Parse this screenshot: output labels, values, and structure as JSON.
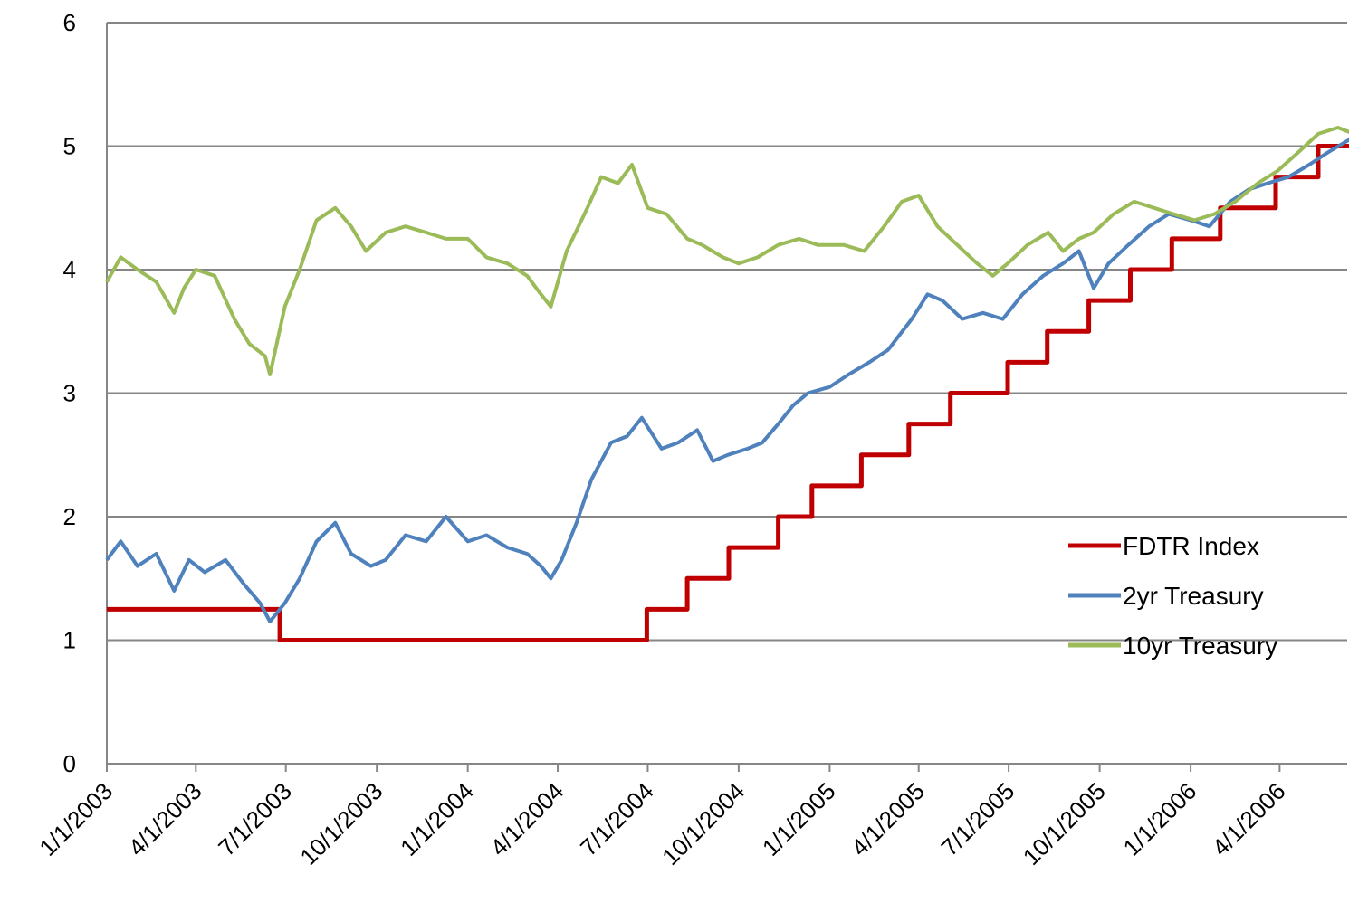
{
  "chart_data": {
    "type": "line",
    "title": "",
    "xlabel": "",
    "ylabel": "",
    "ylim": [
      0,
      6
    ],
    "yticks": [
      0,
      1,
      2,
      3,
      4,
      5,
      6
    ],
    "xlim": [
      "2003-01-01",
      "2006-07-01"
    ],
    "xticks": [
      "2003-01-01",
      "2003-04-01",
      "2003-07-01",
      "2003-10-01",
      "2004-01-01",
      "2004-04-01",
      "2004-07-01",
      "2004-10-01",
      "2005-01-01",
      "2005-04-01",
      "2005-07-01",
      "2005-10-01",
      "2006-01-01",
      "2006-04-01"
    ],
    "xtick_labels": [
      "1/1/2003",
      "4/1/2003",
      "7/1/2003",
      "10/1/2003",
      "1/1/2004",
      "4/1/2004",
      "7/1/2004",
      "10/1/2004",
      "1/1/2005",
      "4/1/2005",
      "7/1/2005",
      "10/1/2005",
      "1/1/2006",
      "4/1/2006"
    ],
    "grid": true,
    "legend_position": "right",
    "series": [
      {
        "name": "FDTR Index",
        "color": "#c00000",
        "step": true,
        "x": [
          "2003-01-01",
          "2003-06-25",
          "2004-06-30",
          "2004-08-10",
          "2004-09-21",
          "2004-11-10",
          "2004-12-14",
          "2005-02-02",
          "2005-03-22",
          "2005-05-03",
          "2005-06-30",
          "2005-08-09",
          "2005-09-20",
          "2005-11-01",
          "2005-12-13",
          "2006-01-31",
          "2006-03-28",
          "2006-05-10",
          "2006-06-29",
          "2006-07-01"
        ],
        "values": [
          1.25,
          1.0,
          1.25,
          1.5,
          1.75,
          2.0,
          2.25,
          2.5,
          2.75,
          3.0,
          3.25,
          3.5,
          3.75,
          4.0,
          4.25,
          4.5,
          4.75,
          5.0,
          5.25,
          5.25
        ]
      },
      {
        "name": "2yr Treasury",
        "color": "#4f81bd",
        "x": [
          "2003-01-01",
          "2003-01-15",
          "2003-02-01",
          "2003-02-20",
          "2003-03-10",
          "2003-03-25",
          "2003-04-10",
          "2003-05-01",
          "2003-05-20",
          "2003-06-05",
          "2003-06-15",
          "2003-06-30",
          "2003-07-15",
          "2003-08-01",
          "2003-08-20",
          "2003-09-05",
          "2003-09-25",
          "2003-10-10",
          "2003-10-30",
          "2003-11-20",
          "2003-12-10",
          "2004-01-01",
          "2004-01-20",
          "2004-02-10",
          "2004-03-01",
          "2004-03-15",
          "2004-03-25",
          "2004-04-05",
          "2004-04-20",
          "2004-05-05",
          "2004-05-25",
          "2004-06-10",
          "2004-06-25",
          "2004-07-15",
          "2004-08-01",
          "2004-08-20",
          "2004-09-05",
          "2004-09-20",
          "2004-10-10",
          "2004-10-25",
          "2004-11-10",
          "2004-11-25",
          "2004-12-10",
          "2005-01-01",
          "2005-01-20",
          "2005-02-10",
          "2005-03-01",
          "2005-03-25",
          "2005-04-10",
          "2005-04-25",
          "2005-05-15",
          "2005-06-05",
          "2005-06-25",
          "2005-07-15",
          "2005-08-05",
          "2005-08-25",
          "2005-09-10",
          "2005-09-25",
          "2005-10-10",
          "2005-10-30",
          "2005-11-20",
          "2005-12-10",
          "2006-01-01",
          "2006-01-20",
          "2006-02-10",
          "2006-03-01",
          "2006-03-20",
          "2006-04-10",
          "2006-05-01",
          "2006-05-20",
          "2006-06-10",
          "2006-06-30"
        ],
        "values": [
          1.65,
          1.8,
          1.6,
          1.7,
          1.4,
          1.65,
          1.55,
          1.65,
          1.45,
          1.3,
          1.15,
          1.3,
          1.5,
          1.8,
          1.95,
          1.7,
          1.6,
          1.65,
          1.85,
          1.8,
          2.0,
          1.8,
          1.85,
          1.75,
          1.7,
          1.6,
          1.5,
          1.65,
          1.95,
          2.3,
          2.6,
          2.65,
          2.8,
          2.55,
          2.6,
          2.7,
          2.45,
          2.5,
          2.55,
          2.6,
          2.75,
          2.9,
          3.0,
          3.05,
          3.15,
          3.25,
          3.35,
          3.6,
          3.8,
          3.75,
          3.6,
          3.65,
          3.6,
          3.8,
          3.95,
          4.05,
          4.15,
          3.85,
          4.05,
          4.2,
          4.35,
          4.45,
          4.4,
          4.35,
          4.55,
          4.65,
          4.7,
          4.75,
          4.85,
          4.95,
          5.05,
          5.25
        ]
      },
      {
        "name": "10yr Treasury",
        "color": "#9bbb59",
        "x": [
          "2003-01-01",
          "2003-01-15",
          "2003-02-01",
          "2003-02-20",
          "2003-03-10",
          "2003-03-20",
          "2003-04-01",
          "2003-04-20",
          "2003-05-10",
          "2003-05-25",
          "2003-06-10",
          "2003-06-15",
          "2003-06-30",
          "2003-07-15",
          "2003-08-01",
          "2003-08-20",
          "2003-09-05",
          "2003-09-20",
          "2003-10-10",
          "2003-10-30",
          "2003-11-20",
          "2003-12-10",
          "2004-01-01",
          "2004-01-20",
          "2004-02-10",
          "2004-03-01",
          "2004-03-15",
          "2004-03-25",
          "2004-04-10",
          "2004-05-01",
          "2004-05-15",
          "2004-06-01",
          "2004-06-15",
          "2004-07-01",
          "2004-07-20",
          "2004-08-10",
          "2004-08-25",
          "2004-09-15",
          "2004-10-01",
          "2004-10-20",
          "2004-11-10",
          "2004-12-01",
          "2004-12-20",
          "2005-01-15",
          "2005-02-05",
          "2005-02-25",
          "2005-03-15",
          "2005-04-01",
          "2005-04-20",
          "2005-05-10",
          "2005-05-30",
          "2005-06-15",
          "2005-06-30",
          "2005-07-20",
          "2005-08-10",
          "2005-08-25",
          "2005-09-10",
          "2005-09-25",
          "2005-10-15",
          "2005-11-05",
          "2005-11-25",
          "2005-12-15",
          "2006-01-05",
          "2006-01-25",
          "2006-02-15",
          "2006-03-10",
          "2006-03-30",
          "2006-04-20",
          "2006-05-10",
          "2006-05-30",
          "2006-06-15",
          "2006-06-30"
        ],
        "values": [
          3.9,
          4.1,
          4.0,
          3.9,
          3.65,
          3.85,
          4.0,
          3.95,
          3.6,
          3.4,
          3.3,
          3.15,
          3.7,
          4.0,
          4.4,
          4.5,
          4.35,
          4.15,
          4.3,
          4.35,
          4.3,
          4.25,
          4.25,
          4.1,
          4.05,
          3.95,
          3.8,
          3.7,
          4.15,
          4.5,
          4.75,
          4.7,
          4.85,
          4.5,
          4.45,
          4.25,
          4.2,
          4.1,
          4.05,
          4.1,
          4.2,
          4.25,
          4.2,
          4.2,
          4.15,
          4.35,
          4.55,
          4.6,
          4.35,
          4.2,
          4.05,
          3.95,
          4.05,
          4.2,
          4.3,
          4.15,
          4.25,
          4.3,
          4.45,
          4.55,
          4.5,
          4.45,
          4.4,
          4.45,
          4.55,
          4.7,
          4.8,
          4.95,
          5.1,
          5.15,
          5.1,
          5.2
        ]
      }
    ]
  }
}
